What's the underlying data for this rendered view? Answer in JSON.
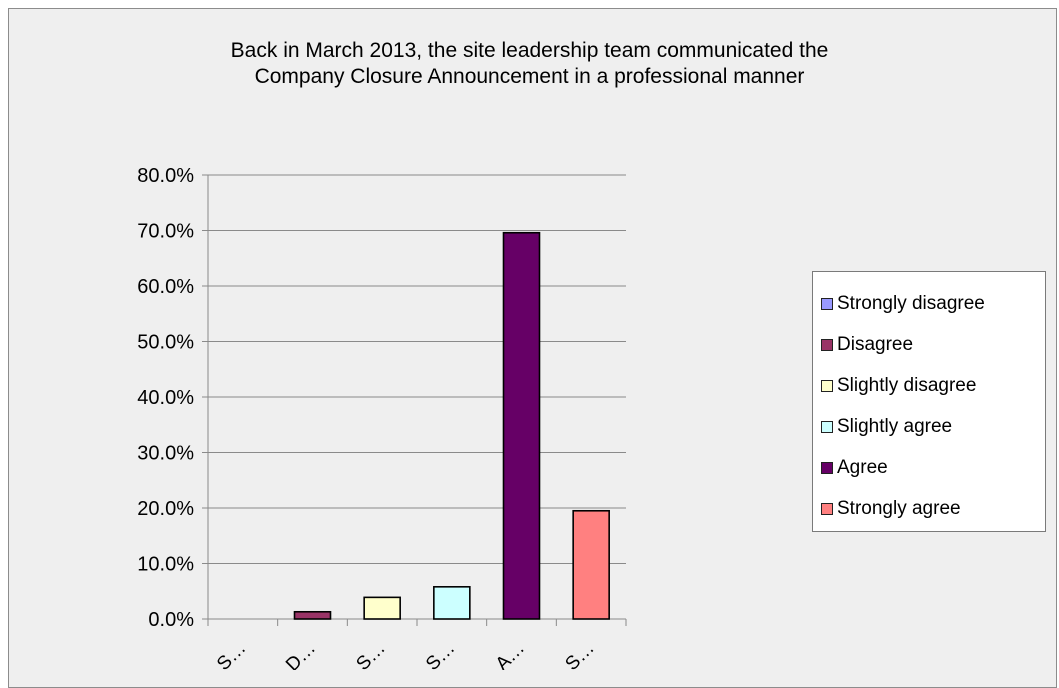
{
  "chart_data": {
    "type": "bar",
    "title": "Back in March 2013, the site leadership team communicated the\nCompany Closure Announcement in a professional manner",
    "categories": [
      "S…",
      "D…",
      "S…",
      "S…",
      "A…",
      "S…"
    ],
    "legend": [
      "Strongly disagree",
      "Disagree",
      "Slightly disagree",
      "Slightly agree",
      "Agree",
      "Strongly agree"
    ],
    "values": [
      0.0,
      1.3,
      3.9,
      5.8,
      69.6,
      19.5
    ],
    "colors": [
      "#9999ff",
      "#993366",
      "#ffffcc",
      "#ccffff",
      "#660066",
      "#ff8080"
    ],
    "ylim": [
      0,
      80
    ],
    "yticks": [
      "0.0%",
      "10.0%",
      "20.0%",
      "30.0%",
      "40.0%",
      "50.0%",
      "60.0%",
      "70.0%",
      "80.0%"
    ],
    "grid": true,
    "legend_position": "right"
  }
}
